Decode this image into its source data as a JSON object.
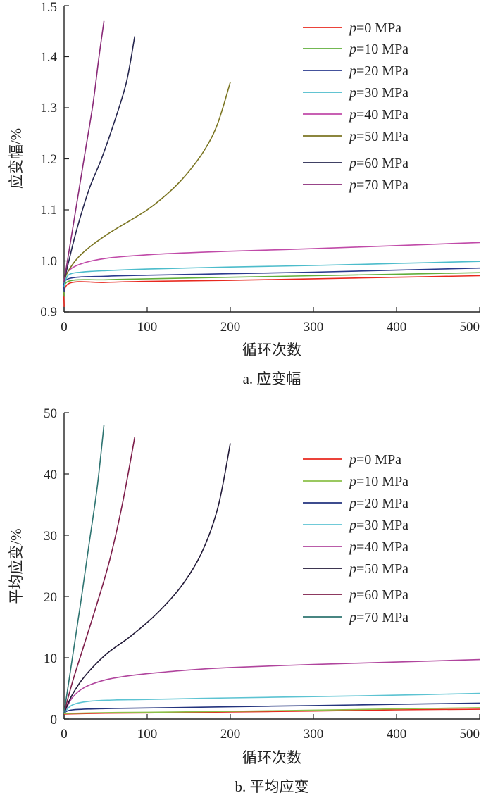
{
  "chart_data": [
    {
      "id": "a",
      "type": "line",
      "caption": "a. 应变幅",
      "xlabel": "循环次数",
      "ylabel": "应变幅/%",
      "xlim": [
        0,
        500
      ],
      "ylim": [
        0.9,
        1.5
      ],
      "xticks": [
        "0",
        "100",
        "200",
        "300",
        "400",
        "500"
      ],
      "yticks": [
        "0.9",
        "1.0",
        "1.1",
        "1.2",
        "1.3",
        "1.4",
        "1.5"
      ],
      "legend_position": "top-right",
      "series": [
        {
          "name": "p=0 MPa",
          "p": "p",
          "rest": "=0 MPa",
          "color": "#e8281e",
          "x": [
            0,
            5,
            50,
            100,
            200,
            300,
            400,
            500
          ],
          "y": [
            0.91,
            0.955,
            0.958,
            0.96,
            0.962,
            0.965,
            0.968,
            0.971
          ]
        },
        {
          "name": "p=10 MPa",
          "p": "p",
          "rest": "=10 MPa",
          "color": "#5fae3a",
          "x": [
            0,
            5,
            50,
            100,
            200,
            300,
            400,
            500
          ],
          "y": [
            0.93,
            0.96,
            0.963,
            0.965,
            0.968,
            0.971,
            0.974,
            0.977
          ]
        },
        {
          "name": "p=20 MPa",
          "p": "p",
          "rest": "=20 MPa",
          "color": "#2a3a8e",
          "x": [
            0,
            5,
            50,
            100,
            200,
            300,
            400,
            500
          ],
          "y": [
            0.94,
            0.965,
            0.97,
            0.972,
            0.975,
            0.978,
            0.982,
            0.986
          ]
        },
        {
          "name": "p=30 MPa",
          "p": "p",
          "rest": "=30 MPa",
          "color": "#4cbccb",
          "x": [
            0,
            5,
            20,
            50,
            100,
            200,
            300,
            400,
            500
          ],
          "y": [
            0.95,
            0.972,
            0.978,
            0.981,
            0.984,
            0.988,
            0.991,
            0.995,
            0.999
          ]
        },
        {
          "name": "p=40 MPa",
          "p": "p",
          "rest": "=40 MPa",
          "color": "#c04aa8",
          "x": [
            0,
            5,
            20,
            50,
            100,
            150,
            200,
            300,
            400,
            500
          ],
          "y": [
            0.96,
            0.98,
            0.994,
            1.005,
            1.012,
            1.016,
            1.019,
            1.024,
            1.03,
            1.036
          ]
        },
        {
          "name": "p=50 MPa",
          "p": "p",
          "rest": "=50 MPa",
          "color": "#7b7522",
          "x": [
            0,
            5,
            20,
            50,
            100,
            130,
            150,
            170,
            185,
            200
          ],
          "y": [
            0.96,
            0.98,
            1.012,
            1.05,
            1.1,
            1.14,
            1.175,
            1.22,
            1.27,
            1.35
          ]
        },
        {
          "name": "p=60 MPa",
          "p": "p",
          "rest": "=60 MPa",
          "color": "#25264e",
          "x": [
            0,
            5,
            15,
            30,
            45,
            60,
            75,
            85
          ],
          "y": [
            0.96,
            0.995,
            1.06,
            1.14,
            1.2,
            1.27,
            1.35,
            1.44
          ]
        },
        {
          "name": "p=70 MPa",
          "p": "p",
          "rest": "=70 MPa",
          "color": "#8a2a78",
          "x": [
            0,
            5,
            15,
            25,
            35,
            42,
            48
          ],
          "y": [
            0.96,
            1.01,
            1.11,
            1.21,
            1.31,
            1.4,
            1.47
          ]
        }
      ]
    },
    {
      "id": "b",
      "type": "line",
      "caption": "b. 平均应变",
      "xlabel": "循环次数",
      "ylabel": "平均应变/%",
      "xlim": [
        0,
        500
      ],
      "ylim": [
        0,
        50
      ],
      "xticks": [
        "0",
        "100",
        "200",
        "300",
        "400",
        "500"
      ],
      "yticks": [
        "0",
        "10",
        "20",
        "30",
        "40",
        "50"
      ],
      "legend_position": "top-right",
      "series": [
        {
          "name": "p=0 MPa",
          "p": "p",
          "rest": "=0 MPa",
          "color": "#e8281e",
          "x": [
            0,
            50,
            100,
            200,
            300,
            400,
            500
          ],
          "y": [
            0.8,
            0.95,
            1.0,
            1.15,
            1.3,
            1.5,
            1.6
          ]
        },
        {
          "name": "p=10 MPa",
          "p": "p",
          "rest": "=10 MPa",
          "color": "#8cc049",
          "x": [
            0,
            50,
            100,
            200,
            300,
            400,
            500
          ],
          "y": [
            0.9,
            1.05,
            1.1,
            1.25,
            1.45,
            1.65,
            1.85
          ]
        },
        {
          "name": "p=20 MPa",
          "p": "p",
          "rest": "=20 MPa",
          "color": "#23337e",
          "x": [
            0,
            10,
            50,
            100,
            200,
            300,
            400,
            500
          ],
          "y": [
            1.0,
            1.5,
            1.7,
            1.8,
            2.0,
            2.2,
            2.4,
            2.6
          ]
        },
        {
          "name": "p=30 MPa",
          "p": "p",
          "rest": "=30 MPa",
          "color": "#5cc3d2",
          "x": [
            0,
            10,
            30,
            60,
            100,
            200,
            300,
            400,
            500
          ],
          "y": [
            1.0,
            2.3,
            2.9,
            3.1,
            3.2,
            3.45,
            3.65,
            3.9,
            4.2
          ]
        },
        {
          "name": "p=40 MPa",
          "p": "p",
          "rest": "=40 MPa",
          "color": "#b0449d",
          "x": [
            0,
            10,
            25,
            50,
            75,
            100,
            150,
            200,
            300,
            400,
            500
          ],
          "y": [
            1.0,
            3.5,
            5.2,
            6.4,
            7.0,
            7.4,
            8.0,
            8.4,
            8.9,
            9.3,
            9.7
          ]
        },
        {
          "name": "p=50 MPa",
          "p": "p",
          "rest": "=50 MPa",
          "color": "#221a38",
          "x": [
            0,
            10,
            25,
            50,
            80,
            110,
            140,
            165,
            185,
            200
          ],
          "y": [
            1.0,
            4.0,
            7.0,
            10.5,
            13.5,
            17.0,
            21.5,
            27.0,
            34.5,
            45.0
          ]
        },
        {
          "name": "p=60 MPa",
          "p": "p",
          "rest": "=60 MPa",
          "color": "#7d1d4a",
          "x": [
            0,
            10,
            25,
            40,
            55,
            70,
            85
          ],
          "y": [
            1.0,
            6.0,
            12.5,
            19.0,
            26.0,
            35.0,
            46.0
          ]
        },
        {
          "name": "p=70 MPa",
          "p": "p",
          "rest": "=70 MPa",
          "color": "#2e7471",
          "x": [
            0,
            10,
            20,
            30,
            40,
            48
          ],
          "y": [
            1.0,
            10.0,
            19.0,
            28.5,
            38.0,
            48.0
          ]
        }
      ]
    }
  ]
}
